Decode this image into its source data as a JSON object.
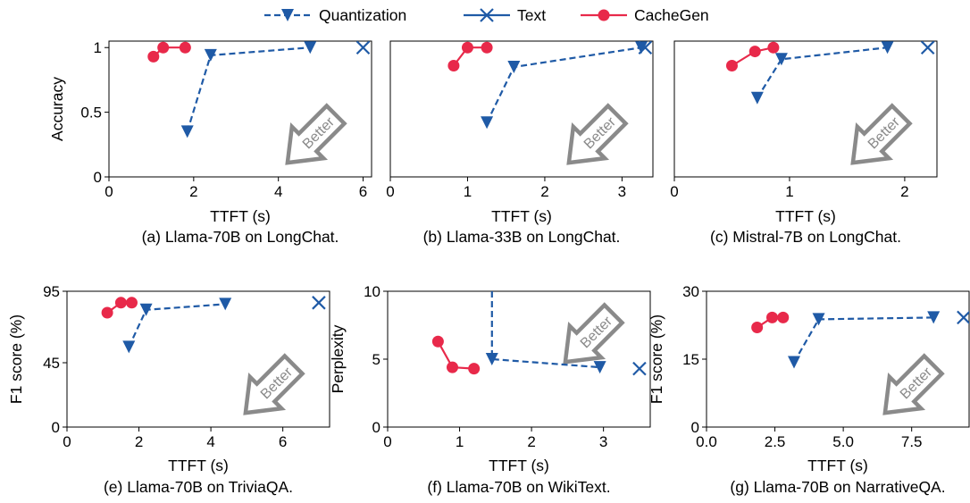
{
  "legend": {
    "quantization": "Quantization",
    "text": "Text",
    "cachegen": "CacheGen"
  },
  "colors": {
    "quantization": "#1f5aa6",
    "text": "#1f5aa6",
    "cachegen": "#e8294a",
    "arrow": "#8a8a8a"
  },
  "annotation": "Better",
  "chart_data": [
    {
      "type": "line",
      "caption": "(a) Llama-70B on LongChat.",
      "xlabel": "TTFT (s)",
      "ylabel": "Accuracy",
      "xlim": [
        0,
        6.2
      ],
      "ylim": [
        0,
        1.05
      ],
      "xticks": [
        0,
        2,
        4,
        6
      ],
      "xtick_labels": [
        "0",
        "2",
        "4",
        "6"
      ],
      "yticks": [
        0,
        0.5,
        1
      ],
      "ytick_labels": [
        "0",
        "0.5",
        "1"
      ],
      "series": [
        {
          "name": "Quantization",
          "x": [
            1.85,
            2.4,
            4.75
          ],
          "y": [
            0.35,
            0.94,
            1.0
          ]
        },
        {
          "name": "Text",
          "x": [
            6.0
          ],
          "y": [
            1.0
          ]
        },
        {
          "name": "CacheGen",
          "x": [
            1.05,
            1.28,
            1.8
          ],
          "y": [
            0.93,
            1.0,
            1.0
          ]
        }
      ]
    },
    {
      "type": "line",
      "caption": "(b) Llama-33B on LongChat.",
      "xlabel": "TTFT (s)",
      "ylabel": "",
      "xlim": [
        0,
        3.4
      ],
      "ylim": [
        0,
        1.05
      ],
      "xticks": [
        0,
        1,
        2,
        3
      ],
      "xtick_labels": [
        "0",
        "1",
        "2",
        "3"
      ],
      "yticks": [],
      "ytick_labels": [],
      "series": [
        {
          "name": "Quantization",
          "x": [
            1.25,
            1.6,
            3.25
          ],
          "y": [
            0.42,
            0.85,
            1.0
          ]
        },
        {
          "name": "Text",
          "x": [
            3.3
          ],
          "y": [
            1.0
          ]
        },
        {
          "name": "CacheGen",
          "x": [
            0.82,
            1.0,
            1.25
          ],
          "y": [
            0.86,
            1.0,
            1.0
          ]
        }
      ]
    },
    {
      "type": "line",
      "caption": "(c) Mistral-7B on LongChat.",
      "xlabel": "TTFT (s)",
      "ylabel": "",
      "xlim": [
        0,
        2.28
      ],
      "ylim": [
        0,
        1.05
      ],
      "xticks": [
        0,
        1,
        2
      ],
      "xtick_labels": [
        "0",
        "1",
        "2"
      ],
      "yticks": [],
      "ytick_labels": [],
      "series": [
        {
          "name": "Quantization",
          "x": [
            0.72,
            0.93,
            1.85
          ],
          "y": [
            0.61,
            0.91,
            1.0
          ]
        },
        {
          "name": "Text",
          "x": [
            2.2
          ],
          "y": [
            1.0
          ]
        },
        {
          "name": "CacheGen",
          "x": [
            0.5,
            0.7,
            0.86
          ],
          "y": [
            0.86,
            0.97,
            1.0
          ]
        }
      ]
    },
    {
      "type": "line",
      "caption": "(e) Llama-70B on TriviaQA.",
      "xlabel": "TTFT (s)",
      "ylabel": "F1 score (%)",
      "xlim": [
        0,
        7.3
      ],
      "ylim": [
        0,
        95
      ],
      "xticks": [
        0,
        2,
        4,
        6
      ],
      "xtick_labels": [
        "0",
        "2",
        "4",
        "6"
      ],
      "yticks": [
        0,
        45,
        95
      ],
      "ytick_labels": [
        "0",
        "45",
        "95"
      ],
      "series": [
        {
          "name": "Quantization",
          "x": [
            1.72,
            2.2,
            4.4
          ],
          "y": [
            56,
            82,
            86
          ]
        },
        {
          "name": "Text",
          "x": [
            7.0
          ],
          "y": [
            87
          ]
        },
        {
          "name": "CacheGen",
          "x": [
            1.12,
            1.5,
            1.8
          ],
          "y": [
            80,
            87,
            87
          ]
        }
      ]
    },
    {
      "type": "line",
      "caption": "(f) Llama-70B on WikiText.",
      "xlabel": "TTFT (s)",
      "ylabel": "Perplexity",
      "xlim": [
        0,
        3.65
      ],
      "ylim": [
        0,
        10
      ],
      "xticks": [
        0,
        1,
        2,
        3
      ],
      "xtick_labels": [
        "0",
        "1",
        "2",
        "3"
      ],
      "yticks": [
        0,
        5,
        10
      ],
      "ytick_labels": [
        "0",
        "5",
        "10"
      ],
      "series": [
        {
          "name": "Quantization",
          "x": [
            1.45,
            1.45,
            2.95
          ],
          "y": [
            10,
            5.0,
            4.4
          ]
        },
        {
          "name": "Text",
          "x": [
            3.5
          ],
          "y": [
            4.3
          ]
        },
        {
          "name": "CacheGen",
          "x": [
            0.7,
            0.9,
            1.2
          ],
          "y": [
            6.3,
            4.4,
            4.3
          ]
        }
      ]
    },
    {
      "type": "line",
      "caption": "(g) Llama-70B on NarrativeQA.",
      "xlabel": "TTFT (s)",
      "ylabel": "F1 score (%)",
      "xlim": [
        0,
        9.6
      ],
      "ylim": [
        0,
        30
      ],
      "xticks": [
        0,
        2.5,
        5,
        7.5
      ],
      "xtick_labels": [
        "0.0",
        "2.5",
        "5.0",
        "7.5"
      ],
      "yticks": [
        0,
        15,
        30
      ],
      "ytick_labels": [
        "0",
        "15",
        "30"
      ],
      "series": [
        {
          "name": "Quantization",
          "x": [
            3.2,
            4.1,
            8.3
          ],
          "y": [
            14.3,
            23.8,
            24.2
          ]
        },
        {
          "name": "Text",
          "x": [
            9.4
          ],
          "y": [
            24.2
          ]
        },
        {
          "name": "CacheGen",
          "x": [
            1.85,
            2.4,
            2.8
          ],
          "y": [
            22.0,
            24.2,
            24.2
          ]
        }
      ]
    }
  ]
}
